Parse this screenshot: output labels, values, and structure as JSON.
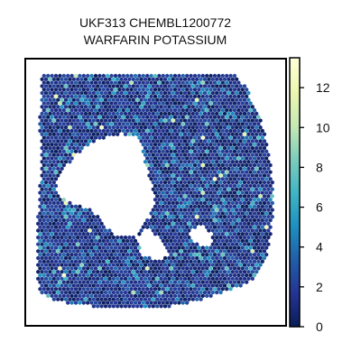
{
  "chart_data": {
    "type": "heatmap",
    "subtype": "hexbin spatial spot map",
    "title": [
      "UKF313 CHEMBL1200772",
      "WARFARIN POTASSIUM"
    ],
    "xlabel": "",
    "ylabel": "",
    "axes_ticks_visible": false,
    "grid": false,
    "colormap": "YlGnBu_r",
    "colorbar": {
      "range": [
        0,
        13.5
      ],
      "ticks": [
        0,
        2,
        4,
        6,
        8,
        10,
        12
      ],
      "tick_labels": [
        "0",
        "2",
        "4",
        "6",
        "8",
        "10",
        "12"
      ],
      "position": "right"
    },
    "value_distribution": {
      "typical_range": [
        0,
        3
      ],
      "occasional_high": [
        4,
        8
      ],
      "rare_max": 13
    },
    "colors": {
      "low": "#081d58",
      "mid": "#1d91c0",
      "high": "#ffffd9",
      "frame": "#000000"
    }
  }
}
